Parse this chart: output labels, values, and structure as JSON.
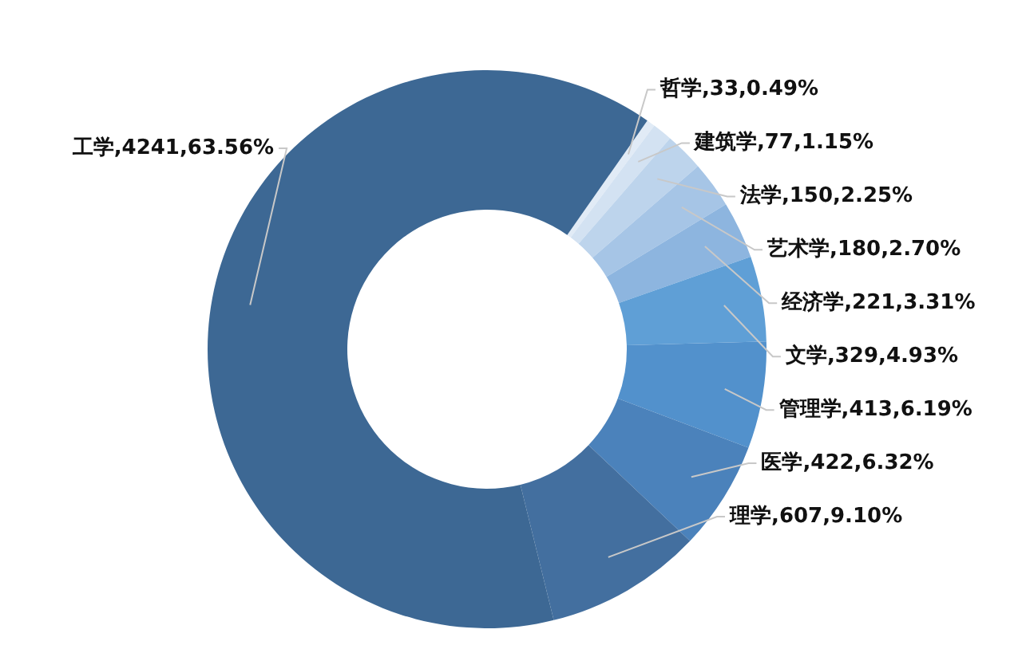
{
  "chart_data": {
    "type": "donut",
    "categories": [
      "哲学",
      "建筑学",
      "法学",
      "艺术学",
      "经济学",
      "文学",
      "管理学",
      "医学",
      "理学",
      "工学"
    ],
    "values": [
      0.49,
      1.15,
      2.25,
      2.7,
      3.31,
      4.93,
      6.19,
      6.32,
      9.1,
      63.56
    ],
    "value_labels": [
      "33,0.49%",
      "77,1.15%",
      "150,2.25%",
      "180,2.70%",
      "221,3.31%",
      "329,4.93%",
      "413,6.19%",
      "422,6.32%",
      "607,9.10%",
      "4241,63.56%"
    ],
    "colors": [
      "#e1ebf6",
      "#d3e2f2",
      "#bdd4ec",
      "#a6c5e6",
      "#8db5df",
      "#5f9fd6",
      "#5291cc",
      "#4b82bb",
      "#436f9f",
      "#3d6894"
    ],
    "legend": false
  }
}
